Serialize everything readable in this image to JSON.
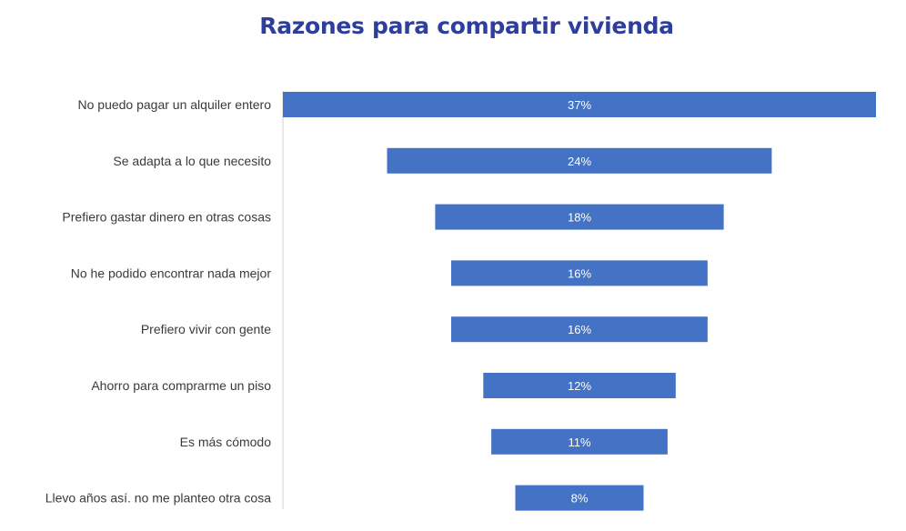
{
  "chart_data": {
    "type": "bar",
    "orientation": "horizontal",
    "layout": "funnel",
    "title": "Razones para compartir vivienda",
    "categories": [
      "No puedo pagar un alquiler entero",
      "Se adapta a lo que necesito",
      "Prefiero gastar dinero en otras cosas",
      "No he podido encontrar nada mejor",
      "Prefiero vivir con gente",
      "Ahorro para comprarme un piso",
      "Es más cómodo",
      "Llevo años así. no me planteo otra cosa"
    ],
    "values": [
      37,
      24,
      18,
      16,
      16,
      12,
      11,
      8
    ],
    "data_labels": [
      "37%",
      "24%",
      "18%",
      "16%",
      "16%",
      "12%",
      "11%",
      "8%"
    ],
    "unit": "%",
    "bar_color": "#4472C4",
    "title_color": "#2E3E9C",
    "grid": false,
    "legend": "none"
  }
}
